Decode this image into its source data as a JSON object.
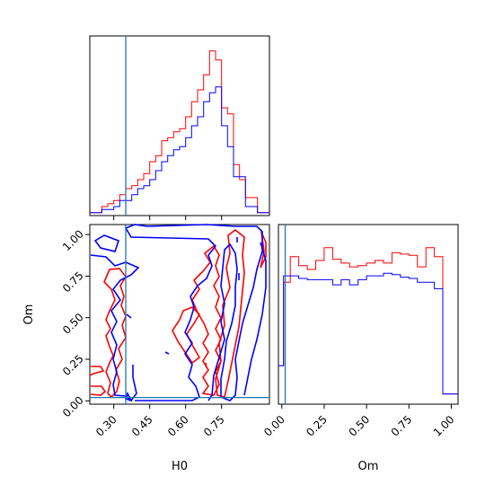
{
  "chart_data": [
    {
      "panel": "H0 marginal",
      "type": "histogram",
      "xlabel": "",
      "ylabel": "",
      "xlim": [
        0.2,
        0.95
      ],
      "truth": 0.35,
      "bin_edges": [
        0.2,
        0.225,
        0.25,
        0.275,
        0.3,
        0.325,
        0.35,
        0.375,
        0.4,
        0.425,
        0.45,
        0.475,
        0.5,
        0.525,
        0.55,
        0.575,
        0.6,
        0.625,
        0.65,
        0.675,
        0.7,
        0.725,
        0.75,
        0.775,
        0.8,
        0.825,
        0.85,
        0.875,
        0.9,
        0.925,
        0.95
      ],
      "series": [
        {
          "color": "#ff0000",
          "values": [
            1,
            1,
            3,
            4,
            5,
            7,
            9,
            10,
            12,
            14,
            18,
            20,
            25,
            26,
            28,
            29,
            33,
            38,
            42,
            47,
            55,
            52,
            36,
            34,
            17,
            12,
            6,
            6,
            1,
            1
          ]
        },
        {
          "color": "#0000ff",
          "values": [
            1,
            1,
            2,
            2,
            3,
            5,
            5,
            7,
            9,
            10,
            12,
            15,
            18,
            20,
            22,
            23,
            26,
            30,
            33,
            38,
            41,
            43,
            30,
            23,
            13,
            13,
            3,
            3,
            1,
            1
          ]
        }
      ]
    },
    {
      "panel": "H0 vs Om contours",
      "type": "contour",
      "xlabel": "H0",
      "ylabel": "Om",
      "xlim": [
        0.2,
        0.95
      ],
      "ylim": [
        -0.02,
        1.06
      ],
      "xticks": [
        "0.30",
        "0.45",
        "0.60",
        "0.75"
      ],
      "yticks": [
        "0.00",
        "0.25",
        "0.50",
        "0.75",
        "1.00"
      ],
      "truth": {
        "H0": 0.35,
        "Om": 0.02
      },
      "series": [
        {
          "color": "#ff0000"
        },
        {
          "color": "#0000ff"
        }
      ]
    },
    {
      "panel": "Om marginal",
      "type": "histogram",
      "xlabel": "Om",
      "ylabel": "",
      "xlim": [
        -0.02,
        1.04
      ],
      "xticks": [
        "0.00",
        "0.25",
        "0.50",
        "0.75",
        "1.00"
      ],
      "truth": 0.02,
      "bin_edges": [
        -0.02,
        0.01,
        0.05,
        0.1,
        0.15,
        0.2,
        0.25,
        0.3,
        0.35,
        0.4,
        0.45,
        0.5,
        0.55,
        0.6,
        0.65,
        0.7,
        0.75,
        0.8,
        0.85,
        0.9,
        0.95,
        1.0,
        1.04
      ],
      "series": [
        {
          "color": "#ff0000",
          "values": [
            0.3,
            0.95,
            1.15,
            1.08,
            1.05,
            1.12,
            1.22,
            1.13,
            1.1,
            1.07,
            1.08,
            1.1,
            1.12,
            1.1,
            1.18,
            1.17,
            1.16,
            1.07,
            1.22,
            1.15,
            0.08,
            0.08
          ]
        },
        {
          "color": "#0000ff",
          "values": [
            0.3,
            1.0,
            1.0,
            0.98,
            0.97,
            0.97,
            0.97,
            0.93,
            0.97,
            0.93,
            0.97,
            1.0,
            1.0,
            1.02,
            1.01,
            0.99,
            0.98,
            0.95,
            0.95,
            0.9,
            0.08,
            0.08
          ]
        }
      ]
    }
  ],
  "truth_color": "#1f77b4"
}
